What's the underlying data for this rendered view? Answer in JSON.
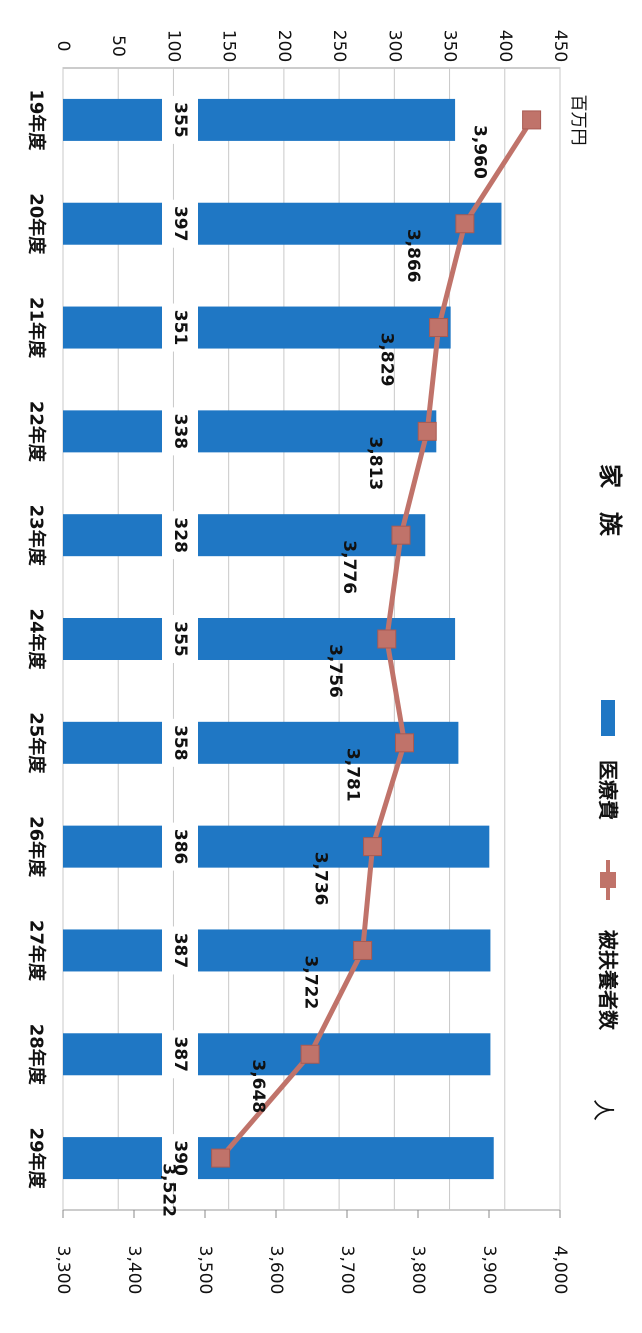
{
  "chart_data": {
    "type": "bar",
    "title": "家　族",
    "orientation_note": "page rotated 90° clockwise",
    "categories": [
      "19年度",
      "20年度",
      "21年度",
      "22年度",
      "23年度",
      "24年度",
      "25年度",
      "26年度",
      "27年度",
      "28年度",
      "29年度"
    ],
    "series": [
      {
        "name": "医療費",
        "type": "bar",
        "axis": "left",
        "unit": "百万円",
        "values": [
          355,
          397,
          351,
          338,
          328,
          355,
          358,
          386,
          387,
          387,
          390
        ],
        "labels": [
          "355",
          "397",
          "351",
          "338",
          "328",
          "355",
          "358",
          "386",
          "387",
          "387",
          "390"
        ],
        "color": "#1F77C4"
      },
      {
        "name": "被扶養者数",
        "type": "line",
        "axis": "right",
        "unit": "人",
        "values": [
          3960,
          3866,
          3829,
          3813,
          3776,
          3756,
          3781,
          3736,
          3722,
          3648,
          3522
        ],
        "labels": [
          "3,960",
          "3,866",
          "3,829",
          "3,813",
          "3,776",
          "3,756",
          "3,781",
          "3,736",
          "3,722",
          "3,648",
          "3,522"
        ],
        "color": "#C0736A"
      }
    ],
    "left_axis": {
      "unit": "百万円",
      "ylim": [
        0,
        450
      ],
      "ticks": [
        "0",
        "50",
        "100",
        "150",
        "200",
        "250",
        "300",
        "350",
        "400",
        "450"
      ]
    },
    "right_axis": {
      "unit": "人",
      "ylim": [
        3300,
        4000
      ],
      "ticks": [
        "3,300",
        "3,400",
        "3,500",
        "3,600",
        "3,700",
        "3,800",
        "3,900",
        "4,000"
      ]
    },
    "grid": true,
    "legend": {
      "position": "right",
      "items": [
        "医療費",
        "被扶養者数"
      ]
    }
  }
}
